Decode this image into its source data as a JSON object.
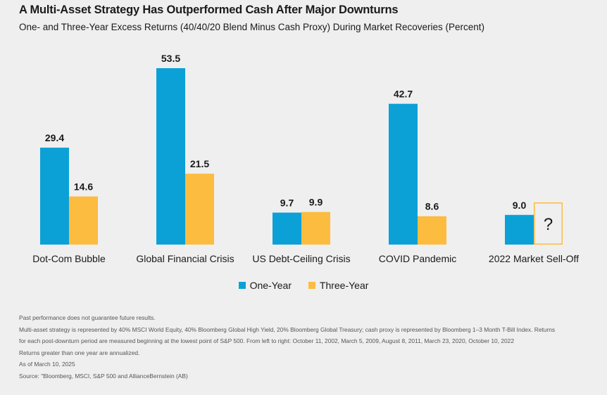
{
  "colors": {
    "one_year": "#0ba1d7",
    "three_year": "#fcbc40",
    "placeholder_border": "#fcbc40"
  },
  "header": {
    "title": "A Multi-Asset Strategy Has Outperformed Cash After Major Downturns",
    "subtitle": "One- and Three-Year Excess Returns (40/40/20 Blend Minus Cash Proxy) During Market Recoveries (Percent)"
  },
  "chart_data": {
    "type": "bar",
    "title": "A Multi-Asset Strategy Has Outperformed Cash After Major Downturns",
    "subtitle": "One- and Three-Year Excess Returns (40/40/20 Blend Minus Cash Proxy) During Market Recoveries (Percent)",
    "categories": [
      "Dot-Com Bubble",
      "Global Financial Crisis",
      "US Debt-Ceiling Crisis",
      "COVID Pandemic",
      "2022 Market Sell-Off"
    ],
    "series": [
      {
        "name": "One-Year",
        "values": [
          29.4,
          53.5,
          9.7,
          42.7,
          9.0
        ]
      },
      {
        "name": "Three-Year",
        "values": [
          14.6,
          21.5,
          9.9,
          8.6,
          null
        ]
      }
    ],
    "data_labels": [
      [
        "29.4",
        "53.5",
        "9.7",
        "42.7",
        "9.0"
      ],
      [
        "14.6",
        "21.5",
        "9.9",
        "8.6",
        "?"
      ]
    ],
    "xlabel": "",
    "ylabel": "",
    "ylim": [
      0,
      53.5
    ],
    "grid": false,
    "legend_position": "bottom-center"
  },
  "legend": {
    "one_year": "One-Year",
    "three_year": "Three-Year"
  },
  "notes": {
    "line1": "Past performance does not guarantee future results.",
    "line2": "Multi-asset strategy is represented by 40% MSCI World Equity, 40% Bloomberg Global High Yield, 20% Bloomberg Global Treasury; cash proxy is represented by Bloomberg 1–3 Month T-Bill Index. Returns",
    "line3": "for each post-downturn period are measured beginning at the lowest point of S&P 500. From left to right: October 11, 2002, March 5, 2009, August 8, 2011, March 23, 2020, October 10, 2022",
    "line4": "Returns greater than one year are annualized.",
    "line5": "As of March 10, 2025",
    "line6": "Source: \"Bloomberg, MSCI, S&P 500 and AllianceBernstein (AB)"
  }
}
